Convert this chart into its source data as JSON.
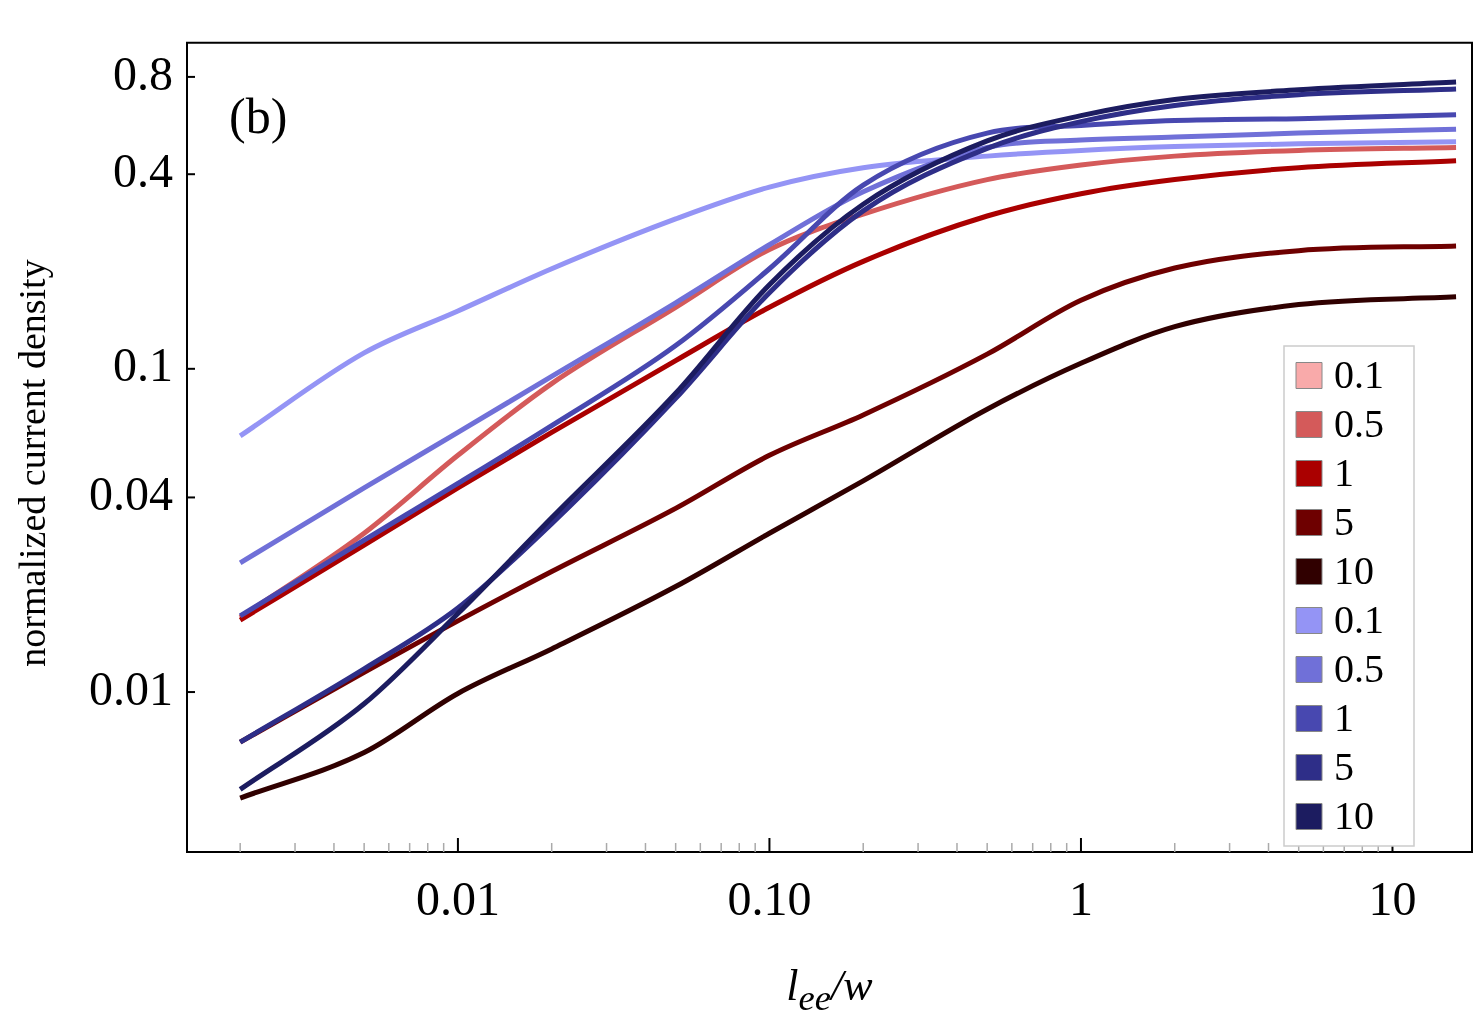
{
  "chart_data": {
    "type": "line",
    "xlabel": "l$_{ee}$/w",
    "ylabel": "normalized current density",
    "annotations": [
      "(b)"
    ],
    "x": [
      0.002,
      0.005,
      0.01,
      0.02,
      0.05,
      0.1,
      0.2,
      0.5,
      1,
      2,
      5,
      16
    ],
    "log": "xy",
    "grid": false,
    "legend": "bottom right",
    "marker": "none",
    "line_style": "solid",
    "xlim": [
      0.00135,
      18
    ],
    "ylim": [
      0.0032,
      1.02
    ],
    "xticks": [
      {
        "value": 0.002,
        "label": null
      },
      {
        "value": 0.003,
        "label": null
      },
      {
        "value": 0.004,
        "label": null
      },
      {
        "value": 0.005,
        "label": null
      },
      {
        "value": 0.006,
        "label": null
      },
      {
        "value": 0.007,
        "label": null
      },
      {
        "value": 0.008,
        "label": null
      },
      {
        "value": 0.009,
        "label": null
      },
      0.01,
      {
        "value": 0.02,
        "label": null
      },
      {
        "value": 0.03,
        "label": null
      },
      {
        "value": 0.04,
        "label": null
      },
      {
        "value": 0.05,
        "label": null
      },
      {
        "value": 0.06,
        "label": null
      },
      {
        "value": 0.07,
        "label": null
      },
      {
        "value": 0.08,
        "label": null
      },
      {
        "value": 0.09,
        "label": null
      },
      {
        "value": 0.1,
        "label": "0.10"
      },
      {
        "value": 0.2,
        "label": null
      },
      {
        "value": 0.3,
        "label": null
      },
      {
        "value": 0.4,
        "label": null
      },
      {
        "value": 0.5,
        "label": null
      },
      {
        "value": 0.6,
        "label": null
      },
      {
        "value": 0.7,
        "label": null
      },
      {
        "value": 0.8,
        "label": null
      },
      {
        "value": 0.9,
        "label": null
      },
      1,
      {
        "value": 2,
        "label": null
      },
      {
        "value": 3,
        "label": null
      },
      {
        "value": 4,
        "label": null
      },
      {
        "value": 5,
        "label": null
      },
      {
        "value": 6,
        "label": null
      },
      {
        "value": 7,
        "label": null
      },
      {
        "value": 8,
        "label": null
      },
      {
        "value": 9,
        "label": null
      },
      10
    ],
    "yticks": [
      0.01,
      0.04,
      0.1,
      0.4,
      0.8
    ],
    "series": [
      {
        "name": "0.1",
        "color": "#f9aaaa",
        "values": [
          null,
          null,
          null,
          null,
          null,
          null,
          null,
          null,
          null,
          null,
          null,
          null
        ]
      },
      {
        "name": "0.5",
        "color": "#d45a5a",
        "values": [
          0.017,
          0.031,
          0.054,
          0.09,
          0.155,
          0.234,
          0.301,
          0.385,
          0.427,
          0.455,
          0.474,
          0.484
        ]
      },
      {
        "name": "1",
        "color": "#aa0000",
        "values": [
          0.0167,
          0.0285,
          0.0428,
          0.0636,
          0.106,
          0.155,
          0.215,
          0.297,
          0.348,
          0.385,
          0.419,
          0.44
        ]
      },
      {
        "name": "5",
        "color": "#6e0000",
        "values": [
          0.007,
          0.0115,
          0.0166,
          0.0236,
          0.037,
          0.054,
          0.072,
          0.111,
          0.163,
          0.205,
          0.232,
          0.24
        ]
      },
      {
        "name": "10",
        "color": "#300000",
        "values": [
          0.0047,
          0.0065,
          0.0099,
          0.0136,
          0.0212,
          0.031,
          0.045,
          0.075,
          0.104,
          0.135,
          0.158,
          0.167
        ]
      },
      {
        "name": "0.1",
        "color": "#9494f5",
        "values": [
          0.062,
          0.112,
          0.151,
          0.204,
          0.291,
          0.365,
          0.419,
          0.455,
          0.474,
          0.487,
          0.497,
          0.504
        ]
      },
      {
        "name": "0.5",
        "color": "#7070d8",
        "values": [
          0.0251,
          0.0428,
          0.0636,
          0.0947,
          0.16,
          0.242,
          0.353,
          0.484,
          0.51,
          0.521,
          0.536,
          0.551
        ]
      },
      {
        "name": "1",
        "color": "#4848b0",
        "values": [
          0.0172,
          0.0295,
          0.0442,
          0.0667,
          0.118,
          0.204,
          0.37,
          0.536,
          0.566,
          0.586,
          0.594,
          0.611
        ]
      },
      {
        "name": "5",
        "color": "#2e2e88",
        "values": [
          0.007,
          0.0118,
          0.0182,
          0.0332,
          0.081,
          0.172,
          0.308,
          0.481,
          0.582,
          0.653,
          0.705,
          0.734
        ]
      },
      {
        "name": "10",
        "color": "#1c1c60",
        "values": [
          0.005,
          0.0092,
          0.0175,
          0.0346,
          0.084,
          0.182,
          0.323,
          0.507,
          0.607,
          0.681,
          0.73,
          0.771
        ]
      }
    ]
  }
}
